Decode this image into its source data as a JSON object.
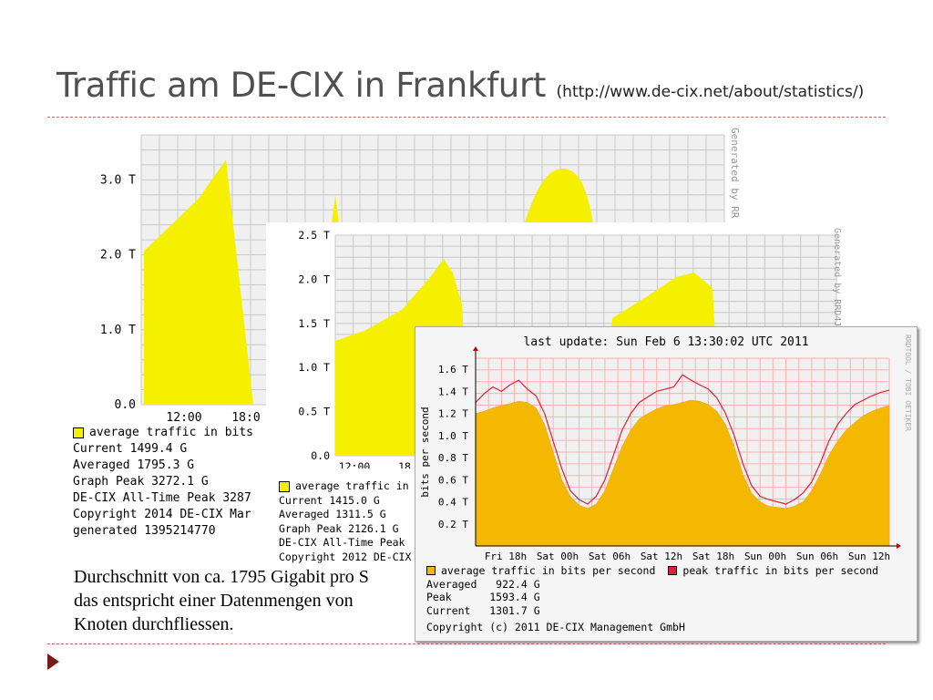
{
  "slide": {
    "title": "Traffic am DE-CIX in Frankfurt",
    "source_link": "(http://www.de-cix.net/about/statistics/)",
    "body_lines": [
      "Durchschnitt von ca. 1795 Gigabit pro S",
      "das entspricht einer Datenmengen von",
      "Knoten durchfliessen."
    ]
  },
  "colors": {
    "accent_dash": "#b46b5e",
    "bullet": "#7a1c1c",
    "area_yellow": "#f5f000",
    "area_orange": "#f5b800",
    "peak_red": "#e0203a",
    "graph_bg": "#f0f0f0"
  },
  "graph_2014": {
    "watermark": "Generated by RR",
    "legend_label": "average traffic in bits",
    "info": [
      "Current 1499.4 G",
      "Averaged 1795.3 G",
      "Graph Peak 3272.1 G",
      "DE-CIX All-Time Peak 3287",
      "Copyright 2014 DE-CIX Mar",
      "generated 1395214770"
    ]
  },
  "graph_2012": {
    "watermark": "Generated by RRD4J",
    "legend_label": "average traffic in",
    "info": [
      "Current 1415.0 G",
      "Averaged 1311.5 G",
      "Graph Peak 2126.1 G",
      "DE-CIX All-Time Peak",
      "Copyright 2012 DE-CIX"
    ]
  },
  "graph_2011": {
    "header": "last update: Sun Feb  6 13:30:02 UTC 2011",
    "watermark": "RRDTOOL / TOBI OETIKER",
    "avg_legend": "average traffic in bits per second",
    "peak_legend": "peak traffic in bits per second",
    "info": [
      "Averaged   922.4 G",
      "Peak      1593.4 G",
      "Current   1301.7 G"
    ],
    "copyright": "Copyright (c) 2011 DE-CIX Management GmbH"
  },
  "chart_data": [
    {
      "type": "area",
      "series": [
        {
          "name": "average traffic in bits",
          "values": [
            2.05,
            2.4,
            2.75,
            3.27,
            0,
            0,
            0,
            2.8,
            0,
            0,
            0
          ]
        }
      ],
      "x_ticks": [
        "12:00",
        "18:0"
      ],
      "y_ticks": [
        "0.0",
        "1.0 T",
        "2.0 T",
        "3.0 T"
      ],
      "ylim": [
        0,
        3.6
      ],
      "grid": true
    },
    {
      "type": "area",
      "series": [
        {
          "name": "average traffic in",
          "values": [
            1.22,
            1.55,
            1.95,
            2.1,
            1.2,
            0.5,
            0.45,
            1.3,
            1.75,
            2.0,
            1.5
          ]
        }
      ],
      "x_ticks": [
        "12:00",
        "18"
      ],
      "y_ticks": [
        "0.0",
        "0.5 T",
        "1.0 T",
        "1.5 T",
        "2.0 T",
        "2.5 T"
      ],
      "ylim": [
        0,
        2.5
      ],
      "grid": true
    },
    {
      "type": "area",
      "title": "last update: Sun Feb  6 13:30:02 UTC 2011",
      "ylabel": "bits per second",
      "x_ticks": [
        "Fri 18h",
        "Sat 00h",
        "Sat 06h",
        "Sat 12h",
        "Sat 18h",
        "Sun 00h",
        "Sun 06h",
        "Sun 12h"
      ],
      "y_ticks": [
        "0.2 T",
        "0.4 T",
        "0.6 T",
        "0.8 T",
        "1.0 T",
        "1.2 T",
        "1.4 T",
        "1.6 T"
      ],
      "ylim": [
        0,
        1.7
      ],
      "x": [
        0,
        1,
        2,
        3,
        4,
        5,
        6,
        7,
        8,
        9,
        10,
        11,
        12,
        13,
        14,
        15,
        16,
        17,
        18,
        19,
        20,
        21,
        22,
        23,
        24,
        25,
        26,
        27,
        28,
        29,
        30,
        31,
        32,
        33,
        34,
        35,
        36,
        37,
        38,
        39,
        40,
        41,
        42,
        43,
        44,
        45,
        46,
        47,
        48
      ],
      "series": [
        {
          "name": "average traffic in bits per second",
          "values": [
            1.2,
            1.22,
            1.25,
            1.27,
            1.29,
            1.31,
            1.3,
            1.25,
            1.1,
            0.85,
            0.6,
            0.45,
            0.37,
            0.34,
            0.38,
            0.5,
            0.7,
            0.9,
            1.05,
            1.15,
            1.2,
            1.24,
            1.27,
            1.28,
            1.3,
            1.32,
            1.31,
            1.28,
            1.22,
            1.1,
            0.9,
            0.65,
            0.48,
            0.4,
            0.36,
            0.35,
            0.34,
            0.36,
            0.4,
            0.5,
            0.65,
            0.82,
            0.95,
            1.05,
            1.12,
            1.18,
            1.22,
            1.25,
            1.27
          ]
        },
        {
          "name": "peak traffic in bits per second",
          "values": [
            1.3,
            1.38,
            1.44,
            1.4,
            1.46,
            1.5,
            1.42,
            1.36,
            1.2,
            0.95,
            0.7,
            0.5,
            0.42,
            0.38,
            0.45,
            0.6,
            0.82,
            1.05,
            1.2,
            1.3,
            1.35,
            1.4,
            1.42,
            1.44,
            1.55,
            1.5,
            1.46,
            1.42,
            1.34,
            1.2,
            1.0,
            0.75,
            0.55,
            0.45,
            0.42,
            0.4,
            0.38,
            0.42,
            0.48,
            0.58,
            0.75,
            0.95,
            1.1,
            1.2,
            1.28,
            1.32,
            1.36,
            1.39,
            1.41
          ]
        }
      ],
      "grid": true
    }
  ]
}
